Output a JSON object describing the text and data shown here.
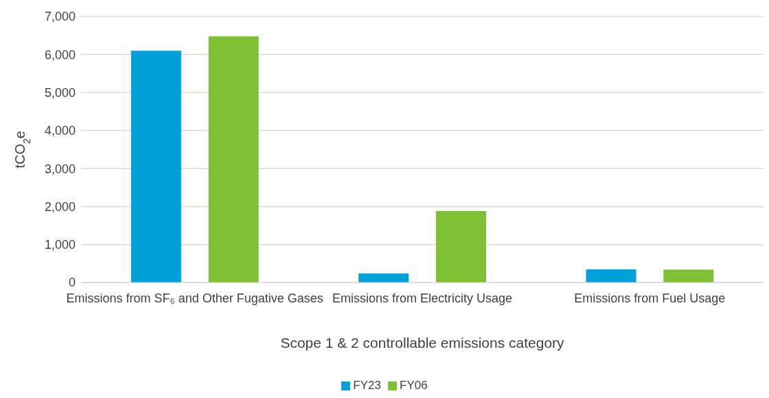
{
  "chart_data": {
    "type": "bar",
    "xlabel": "Scope 1 & 2 controllable emissions category",
    "ylabel": "tCO$_{2}$e",
    "categories": [
      "Emissions from SF₆ and Other Fugative Gases",
      "Emissions from Electricity Usage",
      "Emissions from Fuel Usage"
    ],
    "series": [
      {
        "name": "FY23",
        "color": "#00a0da",
        "values": [
          6100,
          240,
          350
        ]
      },
      {
        "name": "FY06",
        "color": "#7fc034",
        "values": [
          6480,
          1880,
          340
        ]
      }
    ],
    "ylim": [
      0,
      7000
    ],
    "yticks": [
      {
        "value": 0,
        "label": "0"
      },
      {
        "value": 1000,
        "label": "1,000"
      },
      {
        "value": 2000,
        "label": "2,000"
      },
      {
        "value": 3000,
        "label": "3,000"
      },
      {
        "value": 4000,
        "label": "4,000"
      },
      {
        "value": 5000,
        "label": "5,000"
      },
      {
        "value": 6000,
        "label": "6,000"
      },
      {
        "value": 7000,
        "label": "7,000"
      }
    ],
    "grid": "y",
    "legend": "bottom"
  }
}
